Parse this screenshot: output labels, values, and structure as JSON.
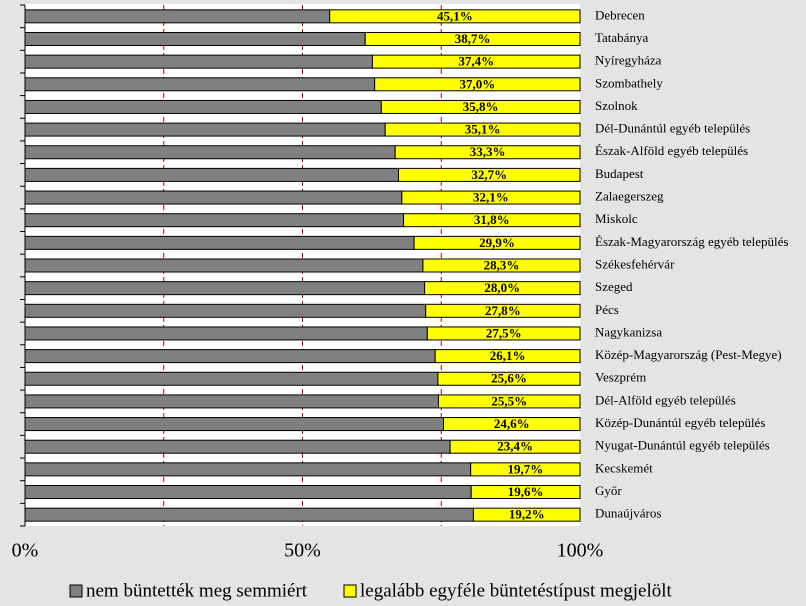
{
  "chart_data": {
    "type": "stacked_barh",
    "categories": [
      "Debrecen",
      "Tatabánya",
      "Nyíregyháza",
      "Szombathely",
      "Szolnok",
      "Dél-Dunántúl egyéb település",
      "Észak-Alföld egyéb település",
      "Budapest",
      "Zalaegerszeg",
      "Miskolc",
      "Észak-Magyarország egyéb település",
      "Székesfehérvár",
      "Szeged",
      "Pécs",
      "Nagykanizsa",
      "Közép-Magyarország (Pest-Megye)",
      "Veszprém",
      "Dél-Alföld egyéb település",
      "Közép-Dunántúl egyéb település",
      "Nyugat-Dunántúl egyéb település",
      "Kecskemét",
      "Győr",
      "Dunaújváros"
    ],
    "series": [
      {
        "name": "nem büntették meg semmiért",
        "color": "#808080",
        "values": [
          54.9,
          61.3,
          62.6,
          63.0,
          64.2,
          64.9,
          66.7,
          67.3,
          67.9,
          68.2,
          70.1,
          71.7,
          72.0,
          72.2,
          72.5,
          73.9,
          74.4,
          74.5,
          75.4,
          76.6,
          80.3,
          80.4,
          80.8
        ]
      },
      {
        "name": "legalább egyféle büntetéstípust megjelölt",
        "color": "#ffff00",
        "values": [
          45.1,
          38.7,
          37.4,
          37.0,
          35.8,
          35.1,
          33.3,
          32.7,
          32.1,
          31.8,
          29.9,
          28.3,
          28.0,
          27.8,
          27.5,
          26.1,
          25.6,
          25.5,
          24.6,
          23.4,
          19.7,
          19.6,
          19.2
        ],
        "value_labels": [
          "45,1%",
          "38,7%",
          "37,4%",
          "37,0%",
          "35,8%",
          "35,1%",
          "33,3%",
          "32,7%",
          "32,1%",
          "31,8%",
          "29,9%",
          "28,3%",
          "28,0%",
          "27,8%",
          "27,5%",
          "26,1%",
          "25,6%",
          "25,5%",
          "24,6%",
          "23,4%",
          "19,7%",
          "19,6%",
          "19,2%"
        ]
      }
    ],
    "xlim": [
      0,
      100
    ],
    "xticks": [
      {
        "value": 0,
        "label": "0%"
      },
      {
        "value": 50,
        "label": "50%"
      },
      {
        "value": 100,
        "label": "100%"
      }
    ],
    "grid": true,
    "grid_step": 25,
    "grid_color": "#c00000",
    "legend": "bottom"
  }
}
